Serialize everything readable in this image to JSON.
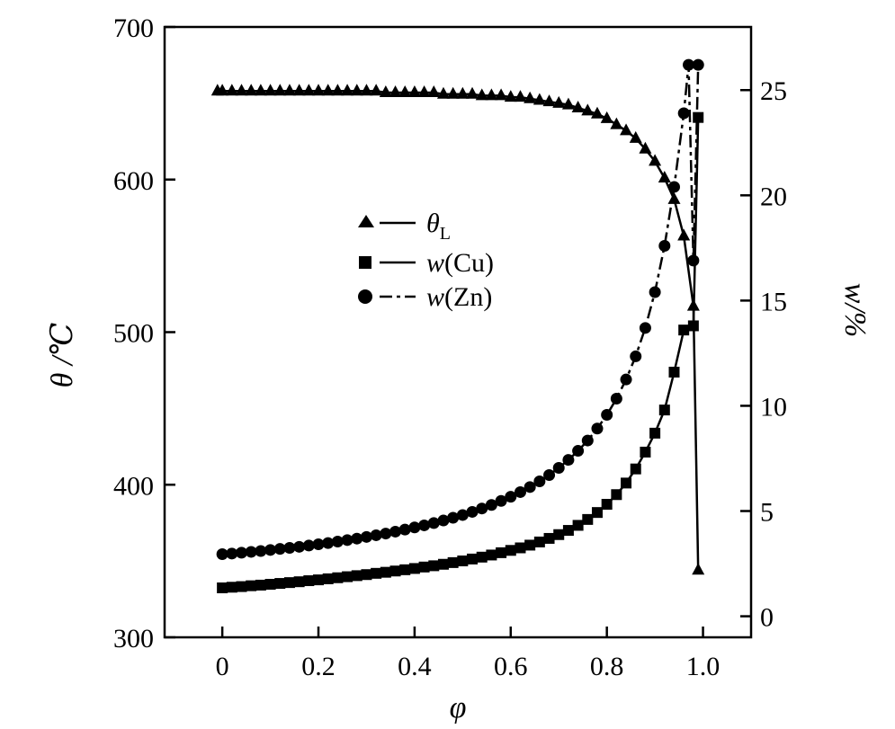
{
  "chart_data": {
    "type": "scatter",
    "title": "",
    "xlabel": "φ",
    "ylabel_left": "θ /℃",
    "ylabel_right": "w/%",
    "xlim": [
      -0.12,
      1.1
    ],
    "ylim_left": [
      300,
      700
    ],
    "ylim_right": [
      -1,
      28
    ],
    "xticks": [
      0,
      0.2,
      0.4,
      0.6,
      0.8,
      1.0
    ],
    "xtick_labels": [
      "0",
      "0.2",
      "0.4",
      "0.6",
      "0.8",
      "1.0"
    ],
    "yticks_left": [
      300,
      400,
      500,
      600,
      700
    ],
    "yticks_right": [
      0,
      5,
      10,
      15,
      20,
      25
    ],
    "grid": false,
    "legend_position": "center-left",
    "series": [
      {
        "name": "θL",
        "name_main": "θ",
        "name_sub": "L",
        "marker": "triangle",
        "axis": "left",
        "x": [
          -0.01,
          0.0,
          0.02,
          0.04,
          0.06,
          0.08,
          0.1,
          0.12,
          0.14,
          0.16,
          0.18,
          0.2,
          0.22,
          0.24,
          0.26,
          0.28,
          0.3,
          0.32,
          0.34,
          0.36,
          0.38,
          0.4,
          0.42,
          0.44,
          0.46,
          0.48,
          0.5,
          0.52,
          0.54,
          0.56,
          0.58,
          0.6,
          0.62,
          0.64,
          0.66,
          0.68,
          0.7,
          0.72,
          0.74,
          0.76,
          0.78,
          0.8,
          0.82,
          0.84,
          0.86,
          0.88,
          0.9,
          0.92,
          0.94,
          0.96,
          0.98,
          0.99
        ],
        "y": [
          658,
          658,
          658,
          658,
          658,
          658,
          658,
          658,
          658,
          658,
          658,
          658,
          658,
          658,
          658,
          658,
          658,
          658,
          657,
          657,
          657,
          657,
          657,
          657,
          656,
          656,
          656,
          656,
          655,
          655,
          655,
          654,
          654,
          653,
          652,
          651,
          650,
          649,
          647,
          645,
          643,
          640,
          636,
          632,
          627,
          620,
          612,
          601,
          587,
          563,
          517,
          344
        ]
      },
      {
        "name": "w(Cu)",
        "name_main": "w",
        "name_rest": "(Cu)",
        "marker": "square",
        "axis": "right",
        "x": [
          0.0,
          0.02,
          0.04,
          0.06,
          0.08,
          0.1,
          0.12,
          0.14,
          0.16,
          0.18,
          0.2,
          0.22,
          0.24,
          0.26,
          0.28,
          0.3,
          0.32,
          0.34,
          0.36,
          0.38,
          0.4,
          0.42,
          0.44,
          0.46,
          0.48,
          0.5,
          0.52,
          0.54,
          0.56,
          0.58,
          0.6,
          0.62,
          0.64,
          0.66,
          0.68,
          0.7,
          0.72,
          0.74,
          0.76,
          0.78,
          0.8,
          0.82,
          0.84,
          0.86,
          0.88,
          0.9,
          0.92,
          0.94,
          0.96,
          0.98,
          0.99
        ],
        "y": [
          1.35,
          1.38,
          1.41,
          1.45,
          1.48,
          1.52,
          1.56,
          1.6,
          1.64,
          1.69,
          1.73,
          1.78,
          1.83,
          1.88,
          1.93,
          1.98,
          2.04,
          2.09,
          2.15,
          2.21,
          2.27,
          2.34,
          2.4,
          2.47,
          2.55,
          2.63,
          2.72,
          2.81,
          2.91,
          3.02,
          3.13,
          3.25,
          3.38,
          3.53,
          3.7,
          3.88,
          4.08,
          4.32,
          4.6,
          4.93,
          5.32,
          5.78,
          6.33,
          7.0,
          7.8,
          8.7,
          9.8,
          11.6,
          13.6,
          13.8,
          23.7
        ]
      },
      {
        "name": "w(Zn)",
        "name_main": "w",
        "name_rest": "(Zn)",
        "marker": "circle",
        "axis": "right",
        "x": [
          0.0,
          0.02,
          0.04,
          0.06,
          0.08,
          0.1,
          0.12,
          0.14,
          0.16,
          0.18,
          0.2,
          0.22,
          0.24,
          0.26,
          0.28,
          0.3,
          0.32,
          0.34,
          0.36,
          0.38,
          0.4,
          0.42,
          0.44,
          0.46,
          0.48,
          0.5,
          0.52,
          0.54,
          0.56,
          0.58,
          0.6,
          0.62,
          0.64,
          0.66,
          0.68,
          0.7,
          0.72,
          0.74,
          0.76,
          0.78,
          0.8,
          0.82,
          0.84,
          0.86,
          0.88,
          0.9,
          0.92,
          0.94,
          0.96,
          0.97,
          0.98,
          0.99
        ],
        "y": [
          2.95,
          2.98,
          3.02,
          3.06,
          3.1,
          3.15,
          3.2,
          3.25,
          3.3,
          3.36,
          3.42,
          3.48,
          3.55,
          3.62,
          3.69,
          3.77,
          3.85,
          3.93,
          4.02,
          4.12,
          4.22,
          4.32,
          4.43,
          4.55,
          4.68,
          4.81,
          4.96,
          5.12,
          5.29,
          5.48,
          5.68,
          5.9,
          6.14,
          6.41,
          6.71,
          7.05,
          7.43,
          7.86,
          8.35,
          8.92,
          9.57,
          10.34,
          11.25,
          12.35,
          13.7,
          15.4,
          17.6,
          20.4,
          23.9,
          26.2,
          16.9,
          26.2
        ]
      }
    ]
  }
}
